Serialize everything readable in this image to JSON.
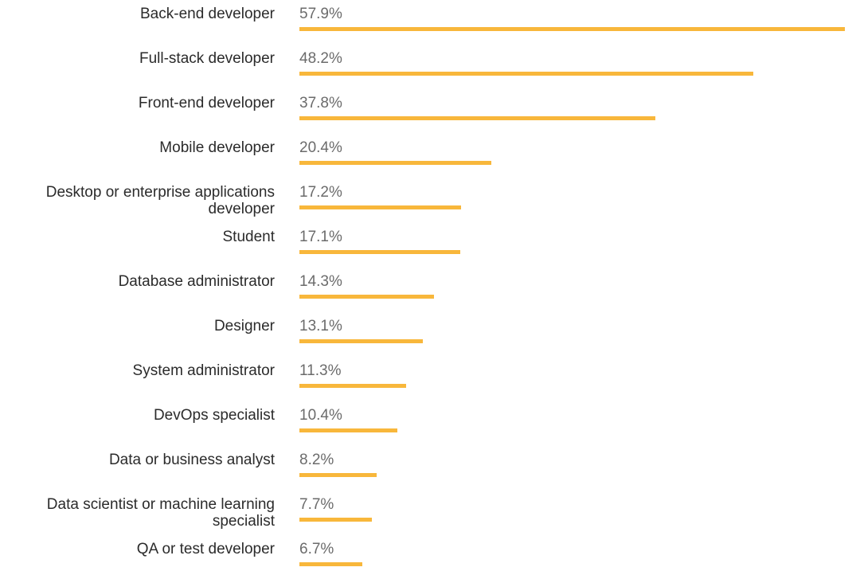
{
  "colors": {
    "bar": "#f8b73b",
    "label": "#2b2b2b",
    "value": "#6b6b6b"
  },
  "chart_data": {
    "type": "bar",
    "orientation": "horizontal",
    "categories": [
      "Back-end developer",
      "Full-stack developer",
      "Front-end developer",
      "Mobile developer",
      "Desktop or enterprise applications developer",
      "Student",
      "Database administrator",
      "Designer",
      "System administrator",
      "DevOps specialist",
      "Data or business analyst",
      "Data scientist or machine learning specialist",
      "QA or test developer"
    ],
    "values": [
      57.9,
      48.2,
      37.8,
      20.4,
      17.2,
      17.1,
      14.3,
      13.1,
      11.3,
      10.4,
      8.2,
      7.7,
      6.7
    ],
    "value_labels": [
      "57.9%",
      "48.2%",
      "37.8%",
      "20.4%",
      "17.2%",
      "17.1%",
      "14.3%",
      "13.1%",
      "11.3%",
      "10.4%",
      "8.2%",
      "7.7%",
      "6.7%"
    ],
    "unit": "%",
    "xlim": [
      0,
      57.9
    ],
    "title": "",
    "xlabel": "",
    "ylabel": ""
  }
}
